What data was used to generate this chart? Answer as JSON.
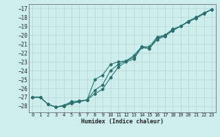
{
  "xlabel": "Humidex (Indice chaleur)",
  "ylabel": "",
  "xlim": [
    -0.5,
    23.5
  ],
  "ylim": [
    -28.7,
    -16.5
  ],
  "yticks": [
    -17,
    -18,
    -19,
    -20,
    -21,
    -22,
    -23,
    -24,
    -25,
    -26,
    -27,
    -28
  ],
  "xticks": [
    0,
    1,
    2,
    3,
    4,
    5,
    6,
    7,
    8,
    9,
    10,
    11,
    12,
    13,
    14,
    15,
    16,
    17,
    18,
    19,
    20,
    21,
    22,
    23
  ],
  "background_color": "#cdeeed",
  "grid_color": "#b8d8d4",
  "line_color": "#2a7070",
  "series1_x": [
    0,
    1,
    2,
    3,
    4,
    5,
    6,
    7,
    8,
    9,
    10,
    11,
    12,
    13,
    14,
    15,
    16,
    17,
    18,
    19,
    20,
    21,
    22,
    23
  ],
  "series1_y": [
    -27.0,
    -27.0,
    -27.8,
    -28.1,
    -28.0,
    -27.7,
    -27.5,
    -27.3,
    -26.6,
    -26.1,
    -24.8,
    -23.6,
    -23.0,
    -22.7,
    -21.4,
    -21.5,
    -20.5,
    -20.1,
    -19.5,
    -19.0,
    -18.5,
    -18.1,
    -17.6,
    -17.1
  ],
  "series2_x": [
    0,
    1,
    2,
    3,
    4,
    5,
    6,
    7,
    8,
    9,
    10,
    11,
    12,
    13,
    14,
    15,
    16,
    17,
    18,
    19,
    20,
    21,
    22,
    23
  ],
  "series2_y": [
    -27.0,
    -27.0,
    -27.8,
    -28.1,
    -27.9,
    -27.5,
    -27.4,
    -27.3,
    -25.0,
    -24.5,
    -23.3,
    -23.0,
    -22.9,
    -22.3,
    -21.3,
    -21.3,
    -20.2,
    -20.0,
    -19.3,
    -19.0,
    -18.4,
    -18.0,
    -17.5,
    -17.1
  ],
  "series3_x": [
    0,
    1,
    2,
    3,
    4,
    5,
    6,
    7,
    8,
    9,
    10,
    11,
    12,
    13,
    14,
    15,
    16,
    17,
    18,
    19,
    20,
    21,
    22,
    23
  ],
  "series3_y": [
    -27.0,
    -27.0,
    -27.8,
    -28.1,
    -28.0,
    -27.6,
    -27.5,
    -27.3,
    -26.2,
    -25.6,
    -24.0,
    -23.3,
    -22.9,
    -22.5,
    -21.3,
    -21.5,
    -20.3,
    -20.1,
    -19.4,
    -19.0,
    -18.5,
    -18.0,
    -17.5,
    -17.1
  ]
}
